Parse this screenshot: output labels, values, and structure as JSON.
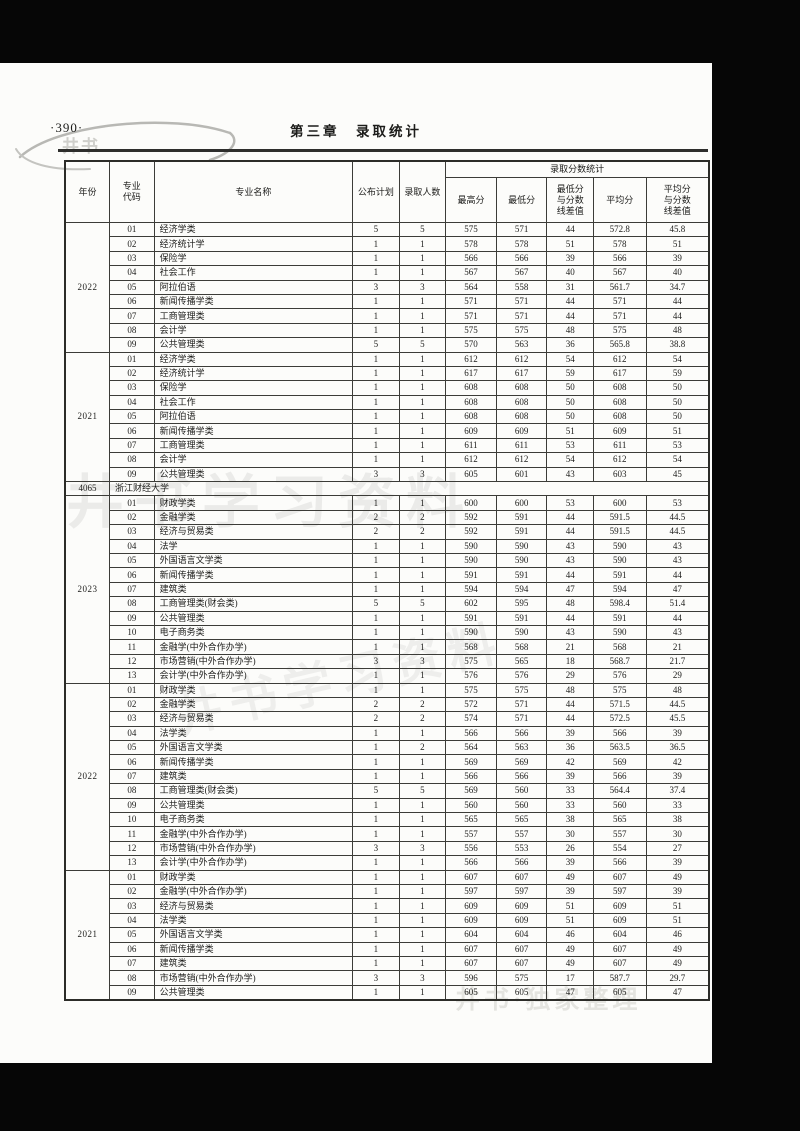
{
  "page": {
    "page_number": "·390·",
    "chapter_title": "第三章　录取统计",
    "watermarks": {
      "corner": "井书",
      "center1": "井书学习资料",
      "center2": "井书学习资料",
      "footer": "井书·独家整理"
    }
  },
  "table": {
    "header": {
      "year": "年份",
      "major_code": "专业代码",
      "major_name": "专业名称",
      "plan": "公布计划",
      "admitted": "录取人数",
      "score_stats": "录取分数统计",
      "max_score": "最高分",
      "min_score": "最低分",
      "min_diff": "最低分与分数线差值",
      "avg_score": "平均分",
      "avg_diff": "平均分与分数线差值"
    },
    "sections": [
      {
        "type": "block",
        "year": "2022",
        "rows": [
          [
            "01",
            "经济学类",
            "5",
            "5",
            "575",
            "571",
            "44",
            "572.8",
            "45.8"
          ],
          [
            "02",
            "经济统计学",
            "1",
            "1",
            "578",
            "578",
            "51",
            "578",
            "51"
          ],
          [
            "03",
            "保险学",
            "1",
            "1",
            "566",
            "566",
            "39",
            "566",
            "39"
          ],
          [
            "04",
            "社会工作",
            "1",
            "1",
            "567",
            "567",
            "40",
            "567",
            "40"
          ],
          [
            "05",
            "阿拉伯语",
            "3",
            "3",
            "564",
            "558",
            "31",
            "561.7",
            "34.7"
          ],
          [
            "06",
            "新闻传播学类",
            "1",
            "1",
            "571",
            "571",
            "44",
            "571",
            "44"
          ],
          [
            "07",
            "工商管理类",
            "1",
            "1",
            "571",
            "571",
            "44",
            "571",
            "44"
          ],
          [
            "08",
            "会计学",
            "1",
            "1",
            "575",
            "575",
            "48",
            "575",
            "48"
          ],
          [
            "09",
            "公共管理类",
            "5",
            "5",
            "570",
            "563",
            "36",
            "565.8",
            "38.8"
          ]
        ]
      },
      {
        "type": "block",
        "year": "2021",
        "rows": [
          [
            "01",
            "经济学类",
            "1",
            "1",
            "612",
            "612",
            "54",
            "612",
            "54"
          ],
          [
            "02",
            "经济统计学",
            "1",
            "1",
            "617",
            "617",
            "59",
            "617",
            "59"
          ],
          [
            "03",
            "保险学",
            "1",
            "1",
            "608",
            "608",
            "50",
            "608",
            "50"
          ],
          [
            "04",
            "社会工作",
            "1",
            "1",
            "608",
            "608",
            "50",
            "608",
            "50"
          ],
          [
            "05",
            "阿拉伯语",
            "1",
            "1",
            "608",
            "608",
            "50",
            "608",
            "50"
          ],
          [
            "06",
            "新闻传播学类",
            "1",
            "1",
            "609",
            "609",
            "51",
            "609",
            "51"
          ],
          [
            "07",
            "工商管理类",
            "1",
            "1",
            "611",
            "611",
            "53",
            "611",
            "53"
          ],
          [
            "08",
            "会计学",
            "1",
            "1",
            "612",
            "612",
            "54",
            "612",
            "54"
          ],
          [
            "09",
            "公共管理类",
            "3",
            "3",
            "605",
            "601",
            "43",
            "603",
            "45"
          ]
        ]
      },
      {
        "type": "school",
        "code": "4065",
        "name": "浙江财经大学"
      },
      {
        "type": "block",
        "year": "2023",
        "rows": [
          [
            "01",
            "财政学类",
            "1",
            "1",
            "600",
            "600",
            "53",
            "600",
            "53"
          ],
          [
            "02",
            "金融学类",
            "2",
            "2",
            "592",
            "591",
            "44",
            "591.5",
            "44.5"
          ],
          [
            "03",
            "经济与贸易类",
            "2",
            "2",
            "592",
            "591",
            "44",
            "591.5",
            "44.5"
          ],
          [
            "04",
            "法学",
            "1",
            "1",
            "590",
            "590",
            "43",
            "590",
            "43"
          ],
          [
            "05",
            "外国语言文学类",
            "1",
            "1",
            "590",
            "590",
            "43",
            "590",
            "43"
          ],
          [
            "06",
            "新闻传播学类",
            "1",
            "1",
            "591",
            "591",
            "44",
            "591",
            "44"
          ],
          [
            "07",
            "建筑类",
            "1",
            "1",
            "594",
            "594",
            "47",
            "594",
            "47"
          ],
          [
            "08",
            "工商管理类(财会类)",
            "5",
            "5",
            "602",
            "595",
            "48",
            "598.4",
            "51.4"
          ],
          [
            "09",
            "公共管理类",
            "1",
            "1",
            "591",
            "591",
            "44",
            "591",
            "44"
          ],
          [
            "10",
            "电子商务类",
            "1",
            "1",
            "590",
            "590",
            "43",
            "590",
            "43"
          ],
          [
            "11",
            "金融学(中外合作办学)",
            "1",
            "1",
            "568",
            "568",
            "21",
            "568",
            "21"
          ],
          [
            "12",
            "市场营销(中外合作办学)",
            "3",
            "3",
            "575",
            "565",
            "18",
            "568.7",
            "21.7"
          ],
          [
            "13",
            "会计学(中外合作办学)",
            "1",
            "1",
            "576",
            "576",
            "29",
            "576",
            "29"
          ]
        ]
      },
      {
        "type": "block",
        "year": "2022",
        "rows": [
          [
            "01",
            "财政学类",
            "1",
            "1",
            "575",
            "575",
            "48",
            "575",
            "48"
          ],
          [
            "02",
            "金融学类",
            "2",
            "2",
            "572",
            "571",
            "44",
            "571.5",
            "44.5"
          ],
          [
            "03",
            "经济与贸易类",
            "2",
            "2",
            "574",
            "571",
            "44",
            "572.5",
            "45.5"
          ],
          [
            "04",
            "法学类",
            "1",
            "1",
            "566",
            "566",
            "39",
            "566",
            "39"
          ],
          [
            "05",
            "外国语言文学类",
            "1",
            "2",
            "564",
            "563",
            "36",
            "563.5",
            "36.5"
          ],
          [
            "06",
            "新闻传播学类",
            "1",
            "1",
            "569",
            "569",
            "42",
            "569",
            "42"
          ],
          [
            "07",
            "建筑类",
            "1",
            "1",
            "566",
            "566",
            "39",
            "566",
            "39"
          ],
          [
            "08",
            "工商管理类(财会类)",
            "5",
            "5",
            "569",
            "560",
            "33",
            "564.4",
            "37.4"
          ],
          [
            "09",
            "公共管理类",
            "1",
            "1",
            "560",
            "560",
            "33",
            "560",
            "33"
          ],
          [
            "10",
            "电子商务类",
            "1",
            "1",
            "565",
            "565",
            "38",
            "565",
            "38"
          ],
          [
            "11",
            "金融学(中外合作办学)",
            "1",
            "1",
            "557",
            "557",
            "30",
            "557",
            "30"
          ],
          [
            "12",
            "市场营销(中外合作办学)",
            "3",
            "3",
            "556",
            "553",
            "26",
            "554",
            "27"
          ],
          [
            "13",
            "会计学(中外合作办学)",
            "1",
            "1",
            "566",
            "566",
            "39",
            "566",
            "39"
          ]
        ]
      },
      {
        "type": "block",
        "year": "2021",
        "rows": [
          [
            "01",
            "财政学类",
            "1",
            "1",
            "607",
            "607",
            "49",
            "607",
            "49"
          ],
          [
            "02",
            "金融学(中外合作办学)",
            "1",
            "1",
            "597",
            "597",
            "39",
            "597",
            "39"
          ],
          [
            "03",
            "经济与贸易类",
            "1",
            "1",
            "609",
            "609",
            "51",
            "609",
            "51"
          ],
          [
            "04",
            "法学类",
            "1",
            "1",
            "609",
            "609",
            "51",
            "609",
            "51"
          ],
          [
            "05",
            "外国语言文学类",
            "1",
            "1",
            "604",
            "604",
            "46",
            "604",
            "46"
          ],
          [
            "06",
            "新闻传播学类",
            "1",
            "1",
            "607",
            "607",
            "49",
            "607",
            "49"
          ],
          [
            "07",
            "建筑类",
            "1",
            "1",
            "607",
            "607",
            "49",
            "607",
            "49"
          ],
          [
            "08",
            "市场营销(中外合作办学)",
            "3",
            "3",
            "596",
            "575",
            "17",
            "587.7",
            "29.7"
          ],
          [
            "09",
            "公共管理类",
            "1",
            "1",
            "605",
            "605",
            "47",
            "605",
            "47"
          ]
        ]
      }
    ]
  }
}
